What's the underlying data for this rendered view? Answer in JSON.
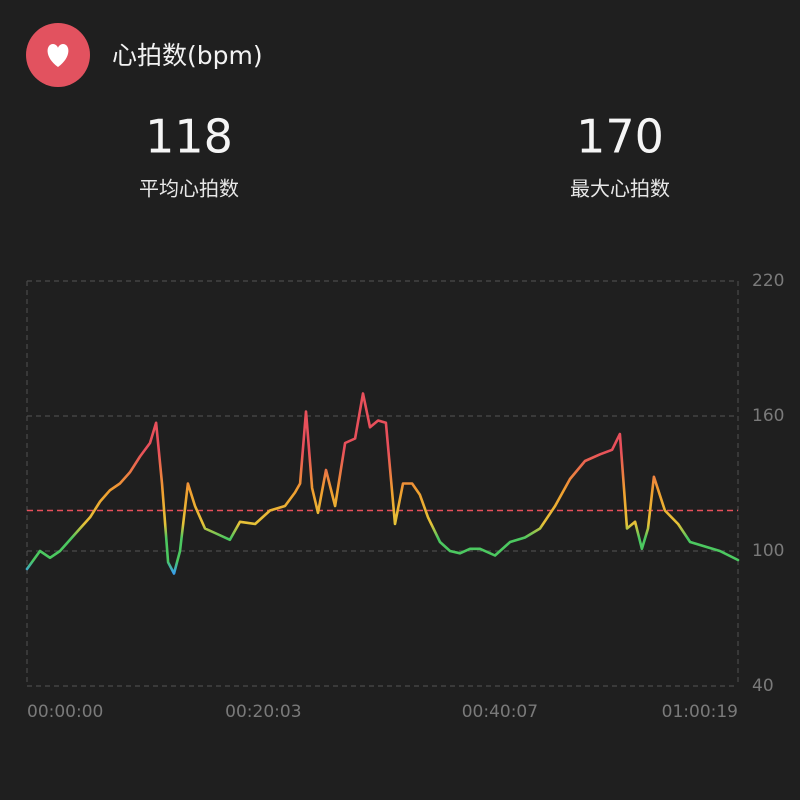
{
  "header": {
    "title": "心拍数(bpm)"
  },
  "stats": [
    {
      "value": 118,
      "label": "平均心拍数"
    },
    {
      "value": 170,
      "label": "最大心拍数"
    }
  ],
  "chart_data": {
    "type": "line",
    "x": [
      0,
      66,
      117,
      168,
      219,
      270,
      321,
      372,
      422,
      473,
      524,
      575,
      626,
      657,
      687,
      718,
      748,
      779,
      819,
      855,
      906,
      957,
      1033,
      1084,
      1161,
      1237,
      1313,
      1364,
      1390,
      1420,
      1451,
      1481,
      1522,
      1568,
      1619,
      1670,
      1710,
      1746,
      1787,
      1827,
      1873,
      1914,
      1960,
      2000,
      2041,
      2102,
      2153,
      2204,
      2255,
      2306,
      2382,
      2459,
      2535,
      2611,
      2688,
      2764,
      2840,
      2917,
      2978,
      3018,
      3054,
      3095,
      3130,
      3161,
      3191,
      3247,
      3314,
      3375,
      3451,
      3527,
      3619
    ],
    "values": [
      92,
      100,
      97,
      100,
      105,
      110,
      115,
      122,
      127,
      130,
      135,
      142,
      148,
      157,
      130,
      95,
      90,
      100,
      130,
      120,
      110,
      108,
      105,
      113,
      112,
      118,
      120,
      126,
      130,
      162,
      128,
      117,
      136,
      120,
      148,
      150,
      170,
      155,
      158,
      157,
      112,
      130,
      130,
      125,
      115,
      104,
      100,
      99,
      101,
      101,
      98,
      104,
      106,
      110,
      120,
      132,
      140,
      143,
      145,
      152,
      110,
      113,
      101,
      110,
      133,
      118,
      112,
      104,
      102,
      100,
      96
    ],
    "xlim": [
      0,
      3619
    ],
    "xticks": [
      {
        "value": 0,
        "label": "00:00:00"
      },
      {
        "value": 1203,
        "label": "00:20:03"
      },
      {
        "value": 2407,
        "label": "00:40:07"
      },
      {
        "value": 3619,
        "label": "01:00:19"
      }
    ],
    "ylim": [
      40,
      220
    ],
    "yticks": [
      40,
      100,
      160,
      220
    ],
    "grid": true
  }
}
